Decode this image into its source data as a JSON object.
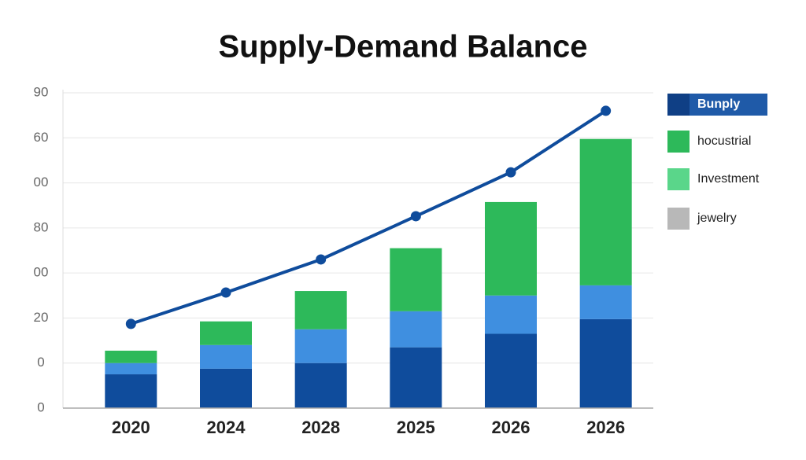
{
  "chart_data": {
    "type": "bar",
    "title": "Supply-Demand Balance",
    "categories": [
      "2020",
      "2024",
      "2028",
      "2025",
      "2026",
      "2026"
    ],
    "stacked": true,
    "series": [
      {
        "color": "#0f4c9c",
        "values": [
          15,
          17.5,
          20,
          27,
          33,
          39.5
        ]
      },
      {
        "color": "#3f8fe0",
        "values": [
          5,
          10.5,
          15,
          16,
          17,
          15
        ]
      },
      {
        "color": "#2db95a",
        "values": [
          5.5,
          10.5,
          17,
          28,
          41.5,
          65
        ]
      }
    ],
    "line": {
      "color": "#0f4c9c",
      "values": [
        37.4,
        51.3,
        66,
        85.2,
        104.7,
        132
      ]
    },
    "legend": [
      {
        "label": "Bunply",
        "color": "#1f5aa8"
      },
      {
        "label": "hocustrial",
        "color": "#2db95a"
      },
      {
        "label": "Investment",
        "color": "#5ad68a"
      },
      {
        "label": "jewelry",
        "color": "#b8b8b8"
      }
    ],
    "ylim": [
      0,
      140
    ],
    "yticks": [
      0,
      {
        "value": 20,
        "label": "0"
      },
      {
        "value": 40,
        "label": "20"
      },
      {
        "value": 60,
        "label": "00"
      },
      80,
      {
        "value": 100,
        "label": "00"
      },
      {
        "value": 120,
        "label": "60"
      },
      {
        "value": 140,
        "label": "90"
      }
    ],
    "grid": true
  }
}
